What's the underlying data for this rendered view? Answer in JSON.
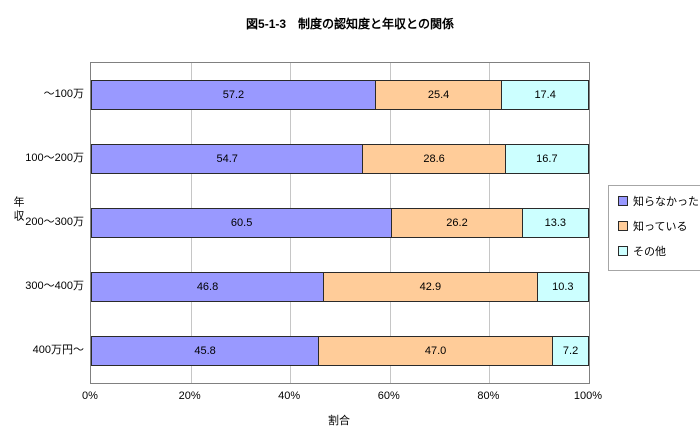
{
  "chart_data": {
    "type": "bar",
    "orientation": "horizontal-stacked",
    "title": "図5-1-3　制度の認知度と年収との関係",
    "xlabel": "割合",
    "ylabel": "年収",
    "categories": [
      "～100万",
      "100～200万",
      "200～300万",
      "300～400万",
      "400万円～"
    ],
    "series": [
      {
        "name": "知らなかった",
        "color": "#9999FF",
        "values": [
          57.2,
          54.7,
          60.5,
          46.8,
          45.8
        ]
      },
      {
        "name": "知っている",
        "color": "#FFCC99",
        "values": [
          25.4,
          28.6,
          26.2,
          42.9,
          47.0
        ]
      },
      {
        "name": "その他",
        "color": "#CCFFFF",
        "values": [
          17.4,
          16.7,
          13.3,
          10.3,
          7.2
        ]
      }
    ],
    "x_tick_values": [
      0,
      20,
      40,
      60,
      80,
      100
    ],
    "x_tick_labels": [
      "0%",
      "20%",
      "40%",
      "60%",
      "80%",
      "100%"
    ],
    "xlim": [
      0,
      100
    ],
    "grid": true,
    "legend_position": "right",
    "colors": {
      "plot_border": "#808080",
      "gridline": "#c6c6c6",
      "bar_border": "#2a2a2a",
      "background": "#ffffff"
    }
  }
}
